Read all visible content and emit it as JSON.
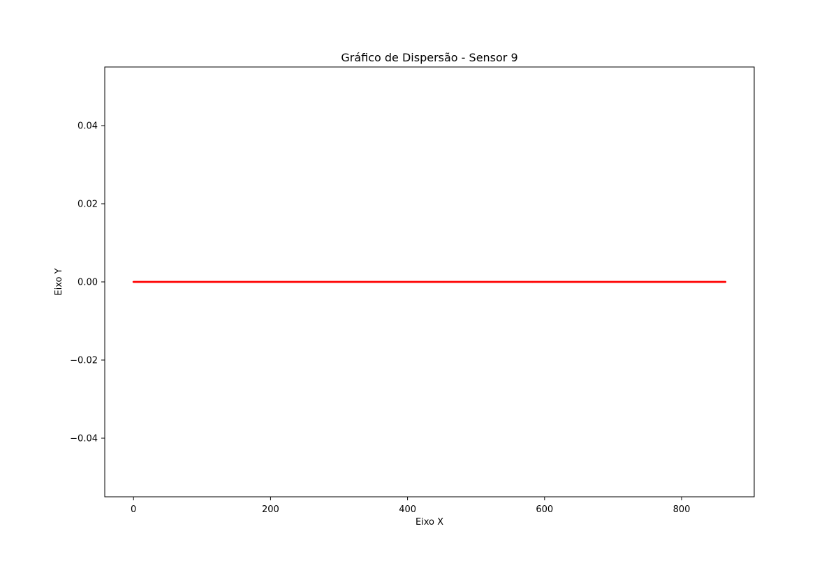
{
  "chart_data": {
    "type": "scatter",
    "title": "Gráfico de Dispersão - Sensor 9",
    "xlabel": "Eixo X",
    "ylabel": "Eixo Y",
    "xlim": [
      -42,
      906
    ],
    "ylim": [
      -0.055,
      0.055
    ],
    "xticks": [
      0,
      200,
      400,
      600,
      800
    ],
    "xtick_labels": [
      "0",
      "200",
      "400",
      "600",
      "800"
    ],
    "yticks": [
      -0.04,
      -0.02,
      0.0,
      0.02,
      0.04
    ],
    "ytick_labels": [
      "−0.04",
      "−0.02",
      "0.00",
      "0.02",
      "0.04"
    ],
    "grid": false,
    "series": [
      {
        "color": "#ff0000",
        "x_range": [
          0,
          864
        ],
        "x_step": 1,
        "y_constant": 0
      }
    ]
  }
}
